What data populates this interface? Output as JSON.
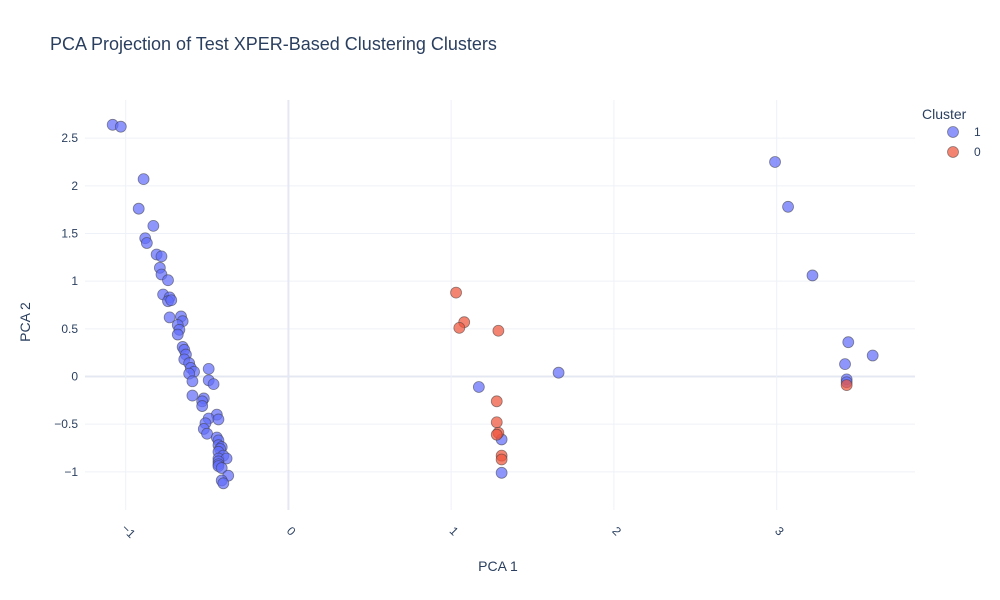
{
  "chart_data": {
    "type": "scatter",
    "title": "PCA Projection of Test XPER-Based Clustering Clusters",
    "xlabel": "PCA 1",
    "ylabel": "PCA 2",
    "xlim": [
      -1.25,
      3.85
    ],
    "ylim": [
      -1.4,
      2.9
    ],
    "x_ticks": [
      -1,
      0,
      1,
      2,
      3
    ],
    "x_tick_labels": [
      "−1",
      "0",
      "1",
      "2",
      "3"
    ],
    "y_ticks": [
      -1,
      -0.5,
      0,
      0.5,
      1,
      1.5,
      2,
      2.5
    ],
    "y_tick_labels": [
      "−1",
      "−0.5",
      "0",
      "0.5",
      "1",
      "1.5",
      "2",
      "2.5"
    ],
    "grid": true,
    "legend": {
      "title": "Cluster",
      "position": "top-right"
    },
    "series": [
      {
        "name": "1",
        "color": "#636efa",
        "points": [
          [
            -1.08,
            2.64
          ],
          [
            -1.03,
            2.62
          ],
          [
            -0.89,
            2.07
          ],
          [
            -0.92,
            1.76
          ],
          [
            -0.83,
            1.58
          ],
          [
            -0.88,
            1.45
          ],
          [
            -0.87,
            1.4
          ],
          [
            -0.81,
            1.28
          ],
          [
            -0.78,
            1.26
          ],
          [
            -0.79,
            1.14
          ],
          [
            -0.78,
            1.07
          ],
          [
            -0.74,
            1.01
          ],
          [
            -0.77,
            0.86
          ],
          [
            -0.73,
            0.83
          ],
          [
            -0.74,
            0.79
          ],
          [
            -0.72,
            0.8
          ],
          [
            -0.73,
            0.62
          ],
          [
            -0.66,
            0.63
          ],
          [
            -0.65,
            0.58
          ],
          [
            -0.68,
            0.54
          ],
          [
            -0.67,
            0.49
          ],
          [
            -0.68,
            0.44
          ],
          [
            -0.65,
            0.31
          ],
          [
            -0.64,
            0.28
          ],
          [
            -0.63,
            0.23
          ],
          [
            -0.64,
            0.18
          ],
          [
            -0.61,
            0.14
          ],
          [
            -0.6,
            0.09
          ],
          [
            -0.58,
            0.05
          ],
          [
            -0.61,
            0.03
          ],
          [
            -0.49,
            0.08
          ],
          [
            -0.49,
            -0.04
          ],
          [
            -0.46,
            -0.08
          ],
          [
            -0.59,
            -0.05
          ],
          [
            -0.59,
            -0.2
          ],
          [
            -0.52,
            -0.23
          ],
          [
            -0.53,
            -0.26
          ],
          [
            -0.53,
            -0.31
          ],
          [
            -0.44,
            -0.4
          ],
          [
            -0.49,
            -0.44
          ],
          [
            -0.43,
            -0.45
          ],
          [
            -0.51,
            -0.49
          ],
          [
            -0.52,
            -0.55
          ],
          [
            -0.5,
            -0.6
          ],
          [
            -0.44,
            -0.64
          ],
          [
            -0.43,
            -0.67
          ],
          [
            -0.43,
            -0.72
          ],
          [
            -0.41,
            -0.74
          ],
          [
            -0.42,
            -0.76
          ],
          [
            -0.43,
            -0.79
          ],
          [
            -0.4,
            -0.83
          ],
          [
            -0.43,
            -0.86
          ],
          [
            -0.38,
            -0.86
          ],
          [
            -0.43,
            -0.89
          ],
          [
            -0.43,
            -0.92
          ],
          [
            -0.43,
            -0.94
          ],
          [
            -0.41,
            -0.96
          ],
          [
            -0.37,
            -1.04
          ],
          [
            -0.41,
            -1.09
          ],
          [
            -0.4,
            -1.12
          ],
          [
            1.17,
            -0.11
          ],
          [
            1.66,
            0.04
          ],
          [
            1.31,
            -0.66
          ],
          [
            1.31,
            -1.01
          ],
          [
            2.99,
            2.25
          ],
          [
            3.07,
            1.78
          ],
          [
            3.22,
            1.06
          ],
          [
            3.44,
            0.36
          ],
          [
            3.59,
            0.22
          ],
          [
            3.42,
            0.13
          ],
          [
            3.43,
            -0.03
          ],
          [
            3.43,
            -0.06
          ]
        ]
      },
      {
        "name": "0",
        "color": "#ef553b",
        "points": [
          [
            1.03,
            0.88
          ],
          [
            1.08,
            0.57
          ],
          [
            1.05,
            0.51
          ],
          [
            1.29,
            0.48
          ],
          [
            1.28,
            -0.26
          ],
          [
            1.28,
            -0.48
          ],
          [
            1.29,
            -0.59
          ],
          [
            1.28,
            -0.61
          ],
          [
            1.31,
            -0.83
          ],
          [
            1.31,
            -0.87
          ],
          [
            3.43,
            -0.09
          ]
        ]
      }
    ]
  }
}
